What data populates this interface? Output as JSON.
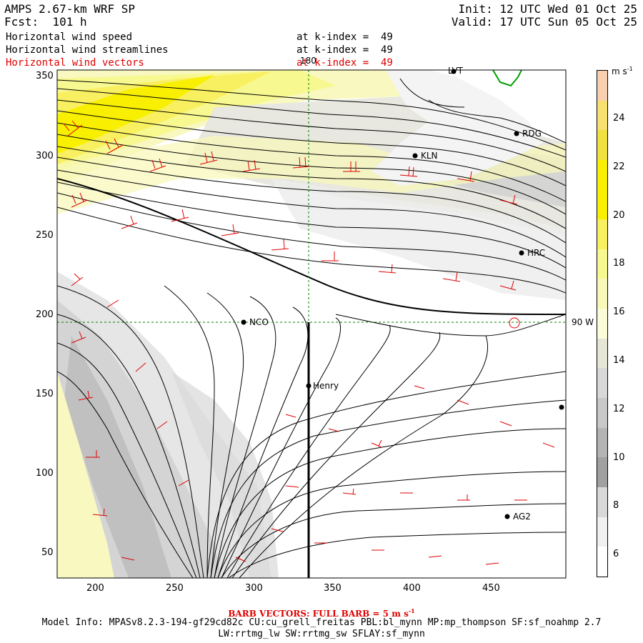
{
  "header": {
    "model": "AMPS 2.67-km WRF SP",
    "forecast": "Fcst:  101 h",
    "init": "Init: 12 UTC Wed 01 Oct 25",
    "valid": "Valid: 17 UTC Sun 05 Oct 25"
  },
  "fields": [
    {
      "name": "Horizontal wind speed",
      "level": "at k-index =  49",
      "color": "#000000"
    },
    {
      "name": "Horizontal wind streamlines",
      "level": "at k-index =  49",
      "color": "#000000"
    },
    {
      "name": "Horizontal wind vectors",
      "level": "at k-index =  49",
      "color": "#e00000"
    }
  ],
  "map": {
    "x_ticks": [
      "200",
      "250",
      "300",
      "350",
      "400",
      "450"
    ],
    "y_ticks": [
      "350",
      "300",
      "250",
      "200",
      "150",
      "100",
      "50"
    ],
    "grid_labels": {
      "meridian": "180",
      "parallel": "90 W"
    },
    "stations": [
      {
        "id": "LVT"
      },
      {
        "id": "RDG"
      },
      {
        "id": "KLN"
      },
      {
        "id": "HRC"
      },
      {
        "id": "NCO"
      },
      {
        "id": "Henry"
      },
      {
        "id": "AG2"
      }
    ]
  },
  "colorbar": {
    "unit": "m s",
    "unit_exp": "-1",
    "labels": [
      "24",
      "22",
      "20",
      "18",
      "16",
      "14",
      "12",
      "10",
      "8",
      "6"
    ],
    "colors": [
      "#f8d0b0",
      "#f8e070",
      "#f0e040",
      "#f8f000",
      "#f8f000",
      "#f8f060",
      "#f8f890",
      "#f8f8b8",
      "#fcfcd8",
      "#e6e6d6",
      "#d8d8d8",
      "#c8c8c8",
      "#b4b4b4",
      "#a0a0a0",
      "#d8d8d8",
      "#f0f0f0",
      "#ffffff"
    ]
  },
  "footer": {
    "barb": "BARB VECTORS:  FULL BARB = 5 m s",
    "barb_exp": "-1",
    "model_info": "Model Info: MPASv8.2.3-194-gf29cd82c CU:cu_grell_freitas PBL:bl_mynn MP:mp_thompson SF:sf_noahmp 2.7",
    "model_info2": "LW:rrtmg_lw SW:rrtmg_sw SFLAY:sf_mynn"
  },
  "colors": {
    "barb": "#e00000",
    "grid": "#008000",
    "streamline": "#000000"
  }
}
